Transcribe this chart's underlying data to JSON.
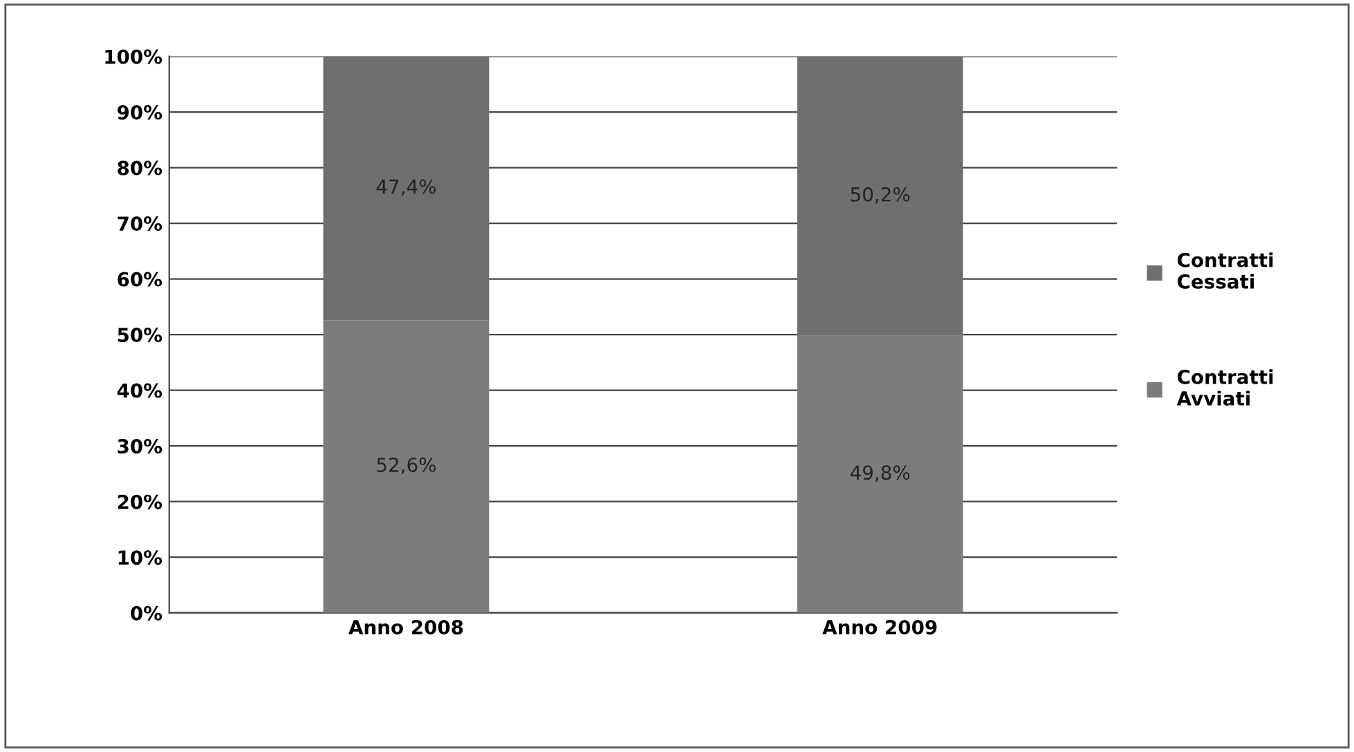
{
  "chart_data": {
    "type": "bar",
    "stacked": true,
    "categories": [
      "Anno 2008",
      "Anno 2009"
    ],
    "series": [
      {
        "name": "Contratti Avviati",
        "color": "#7c7c7c",
        "values": [
          52.6,
          49.8
        ],
        "value_labels": [
          "52,6%",
          "49,8%"
        ]
      },
      {
        "name": "Contratti Cessati",
        "color": "#6f6f6f",
        "values": [
          47.4,
          50.2
        ],
        "value_labels": [
          "47,4%",
          "50,2%"
        ]
      }
    ],
    "ylim": [
      0,
      100
    ],
    "yticks": [
      {
        "value": 0,
        "label": "0%"
      },
      {
        "value": 10,
        "label": "10%"
      },
      {
        "value": 20,
        "label": "20%"
      },
      {
        "value": 30,
        "label": "30%"
      },
      {
        "value": 40,
        "label": "40%"
      },
      {
        "value": 50,
        "label": "50%"
      },
      {
        "value": 60,
        "label": "60%"
      },
      {
        "value": 70,
        "label": "70%"
      },
      {
        "value": 80,
        "label": "80%"
      },
      {
        "value": 90,
        "label": "90%"
      },
      {
        "value": 100,
        "label": "100%"
      }
    ],
    "grid": "y",
    "legend": "right"
  }
}
